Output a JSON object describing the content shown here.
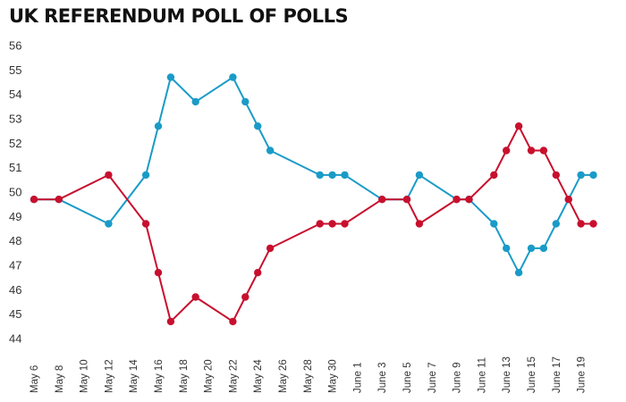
{
  "chart_data": {
    "type": "line",
    "title": "UK REFERENDUM POLL OF POLLS",
    "xlabel": "",
    "ylabel": "",
    "ylim": [
      44,
      56
    ],
    "yticks": [
      44,
      45,
      46,
      47,
      48,
      49,
      50,
      51,
      52,
      53,
      54,
      55,
      56
    ],
    "grid": false,
    "legend": "none",
    "x_tick_labels": [
      "May 6",
      "May 8",
      "May 10",
      "May 12",
      "May 14",
      "May 16",
      "May 18",
      "May 20",
      "May 22",
      "May 24",
      "May 26",
      "May 28",
      "May 30",
      "June 1",
      "June 3",
      "June 5",
      "June 7",
      "June 9",
      "June 11",
      "June 13",
      "June 15",
      "June 17",
      "June 19"
    ],
    "colors": {
      "blue": "#1a9bc7",
      "red": "#c8102e"
    },
    "series": [
      {
        "color": "#1a9bc7",
        "points": [
          {
            "x": "May 6",
            "y": 49.7
          },
          {
            "x": "May 8",
            "y": 49.7
          },
          {
            "x": "May 12",
            "y": 48.7
          },
          {
            "x": "May 15",
            "y": 50.7
          },
          {
            "x": "May 16",
            "y": 52.7
          },
          {
            "x": "May 17",
            "y": 54.7
          },
          {
            "x": "May 19",
            "y": 53.7
          },
          {
            "x": "May 22",
            "y": 54.7
          },
          {
            "x": "May 23",
            "y": 53.7
          },
          {
            "x": "May 24",
            "y": 52.7
          },
          {
            "x": "May 25",
            "y": 51.7
          },
          {
            "x": "May 29",
            "y": 50.7
          },
          {
            "x": "May 30",
            "y": 50.7
          },
          {
            "x": "May 31",
            "y": 50.7
          },
          {
            "x": "June 3",
            "y": 49.7
          },
          {
            "x": "June 5",
            "y": 49.7
          },
          {
            "x": "June 6",
            "y": 50.7
          },
          {
            "x": "June 9",
            "y": 49.7
          },
          {
            "x": "June 10",
            "y": 49.7
          },
          {
            "x": "June 12",
            "y": 48.7
          },
          {
            "x": "June 13",
            "y": 47.7
          },
          {
            "x": "June 14",
            "y": 46.7
          },
          {
            "x": "June 15",
            "y": 47.7
          },
          {
            "x": "June 16",
            "y": 47.7
          },
          {
            "x": "June 17",
            "y": 48.7
          },
          {
            "x": "June 18",
            "y": 49.7
          },
          {
            "x": "June 19",
            "y": 50.7
          },
          {
            "x": "June 20",
            "y": 50.7
          }
        ]
      },
      {
        "color": "#c8102e",
        "points": [
          {
            "x": "May 6",
            "y": 49.7
          },
          {
            "x": "May 8",
            "y": 49.7
          },
          {
            "x": "May 12",
            "y": 50.7
          },
          {
            "x": "May 15",
            "y": 48.7
          },
          {
            "x": "May 16",
            "y": 46.7
          },
          {
            "x": "May 17",
            "y": 44.7
          },
          {
            "x": "May 19",
            "y": 45.7
          },
          {
            "x": "May 22",
            "y": 44.7
          },
          {
            "x": "May 23",
            "y": 45.7
          },
          {
            "x": "May 24",
            "y": 46.7
          },
          {
            "x": "May 25",
            "y": 47.7
          },
          {
            "x": "May 29",
            "y": 48.7
          },
          {
            "x": "May 30",
            "y": 48.7
          },
          {
            "x": "May 31",
            "y": 48.7
          },
          {
            "x": "June 3",
            "y": 49.7
          },
          {
            "x": "June 5",
            "y": 49.7
          },
          {
            "x": "June 6",
            "y": 48.7
          },
          {
            "x": "June 9",
            "y": 49.7
          },
          {
            "x": "June 10",
            "y": 49.7
          },
          {
            "x": "June 12",
            "y": 50.7
          },
          {
            "x": "June 13",
            "y": 51.7
          },
          {
            "x": "June 14",
            "y": 52.7
          },
          {
            "x": "June 15",
            "y": 51.7
          },
          {
            "x": "June 16",
            "y": 51.7
          },
          {
            "x": "June 17",
            "y": 50.7
          },
          {
            "x": "June 18",
            "y": 49.7
          },
          {
            "x": "June 19",
            "y": 48.7
          },
          {
            "x": "June 20",
            "y": 48.7
          }
        ]
      }
    ]
  }
}
